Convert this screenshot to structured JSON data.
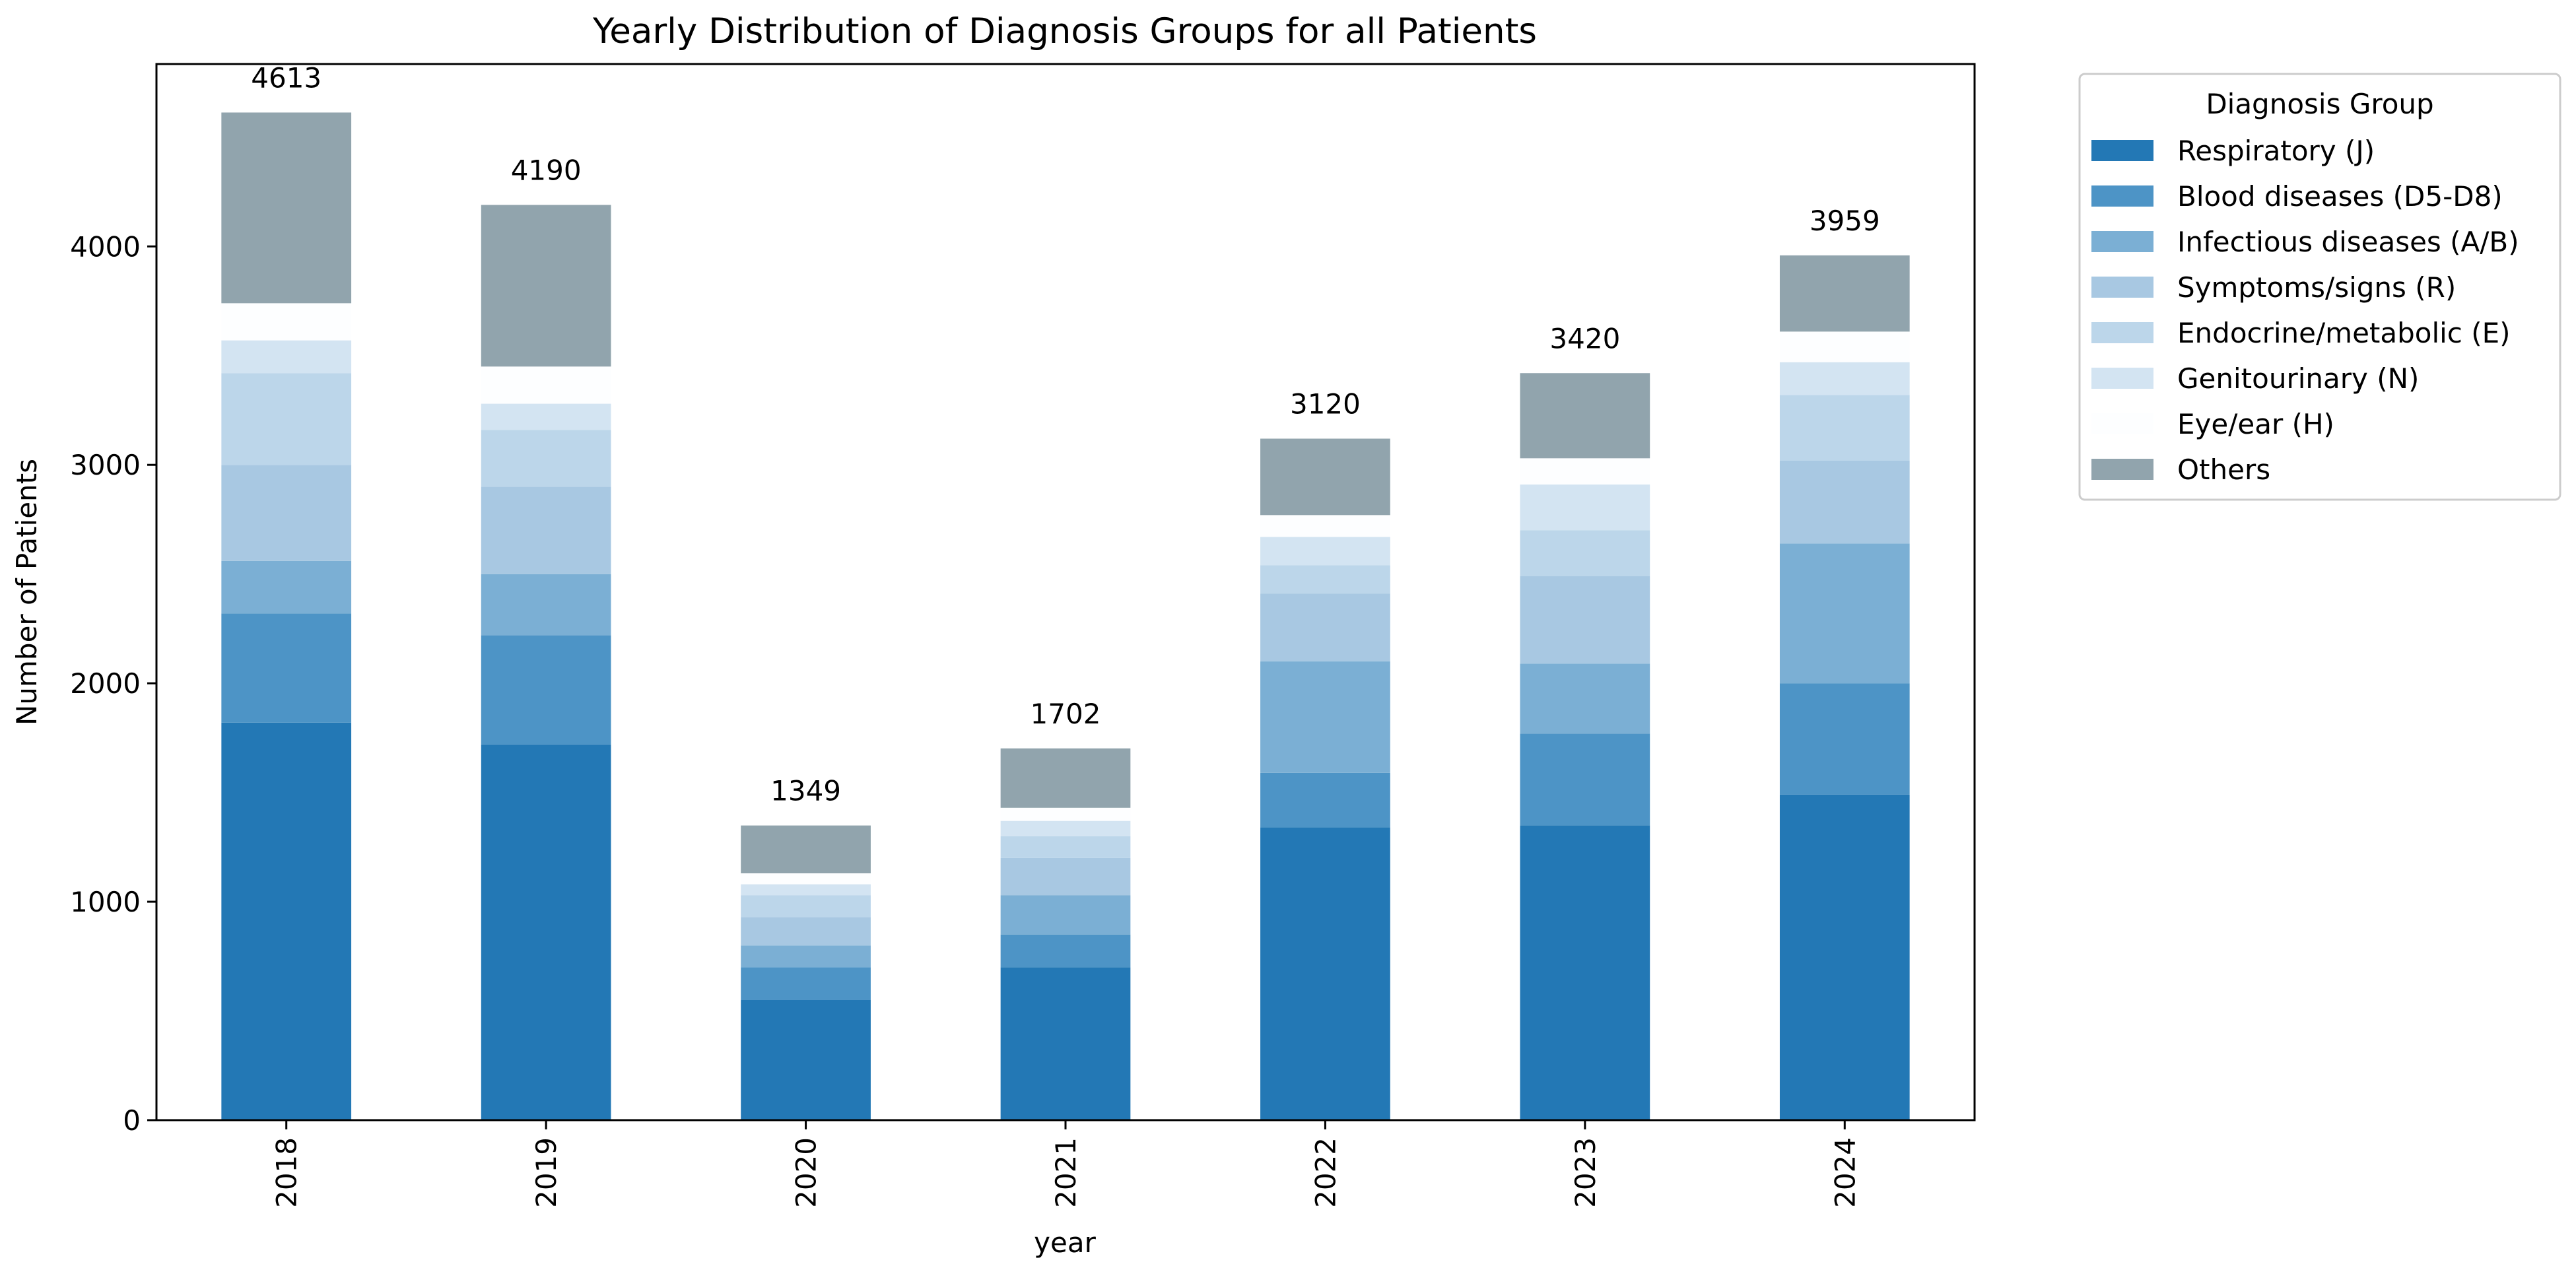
{
  "chart_data": {
    "type": "bar",
    "stacked": true,
    "title": "Yearly Distribution of Diagnosis Groups for all Patients",
    "xlabel": "year",
    "ylabel": "Number of Patients",
    "ylim": [
      0,
      4835
    ],
    "yticks": [
      0,
      1000,
      2000,
      3000,
      4000
    ],
    "categories": [
      "2018",
      "2019",
      "2020",
      "2021",
      "2022",
      "2023",
      "2024"
    ],
    "series": [
      {
        "name": "Respiratory (J)",
        "color": "#2378b5",
        "values": [
          1820,
          1720,
          550,
          700,
          1340,
          1350,
          1490
        ]
      },
      {
        "name": "Blood diseases (D5-D8)",
        "color": "#4d94c6",
        "values": [
          500,
          500,
          150,
          150,
          250,
          420,
          510
        ]
      },
      {
        "name": "Infectious diseases (A/B)",
        "color": "#7bafd4",
        "values": [
          240,
          280,
          100,
          180,
          510,
          320,
          640
        ]
      },
      {
        "name": "Symptoms/signs (R)",
        "color": "#a8c8e2",
        "values": [
          440,
          400,
          130,
          170,
          310,
          400,
          380
        ]
      },
      {
        "name": "Endocrine/metabolic (E)",
        "color": "#bcd6ea",
        "values": [
          420,
          260,
          100,
          100,
          130,
          210,
          300
        ]
      },
      {
        "name": "Genitourinary (N)",
        "color": "#d3e4f2",
        "values": [
          150,
          120,
          50,
          70,
          130,
          210,
          150
        ]
      },
      {
        "name": "Eye/ear (H)",
        "color": "#fdfeff",
        "values": [
          170,
          170,
          50,
          60,
          100,
          120,
          140
        ]
      },
      {
        "name": "Others",
        "color": "#91a4ad",
        "values": [
          873,
          740,
          219,
          272,
          350,
          390,
          349
        ]
      }
    ],
    "totals": [
      4613,
      4190,
      1349,
      1702,
      3120,
      3420,
      3959
    ],
    "legend": {
      "title": "Diagnosis Group",
      "position": "outside-top-right"
    },
    "grid": false
  }
}
